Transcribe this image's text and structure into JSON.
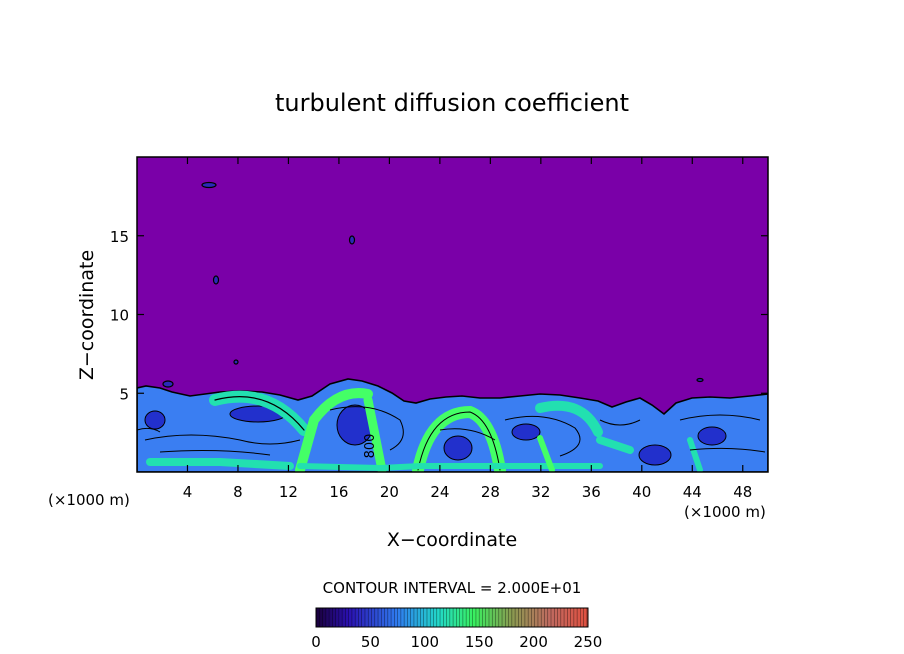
{
  "chart_data": {
    "type": "heatmap",
    "title": "turbulent diffusion coefficient",
    "xlabel": "X−coordinate",
    "ylabel": "Z−coordinate",
    "x_unit_left": "(×1000 m)",
    "x_unit_right": "(×1000 m)",
    "xlim": [
      0,
      50
    ],
    "ylim": [
      0,
      20
    ],
    "x_ticks": [
      4,
      8,
      12,
      16,
      20,
      24,
      28,
      32,
      36,
      40,
      44,
      48
    ],
    "y_ticks": [
      5,
      10,
      15
    ],
    "contour_interval_text": "CONTOUR INTERVAL = 2.000E+01",
    "contour_label": "800",
    "colorbar": {
      "range": [
        0,
        250
      ],
      "ticks": [
        0,
        50,
        100,
        150,
        200,
        250
      ]
    },
    "colors": {
      "background_field": "#7a00a8",
      "low": "#1f2ad0",
      "mid": "#3aa0ff",
      "mid_high": "#22e0b0",
      "high": "#44ff66"
    }
  }
}
